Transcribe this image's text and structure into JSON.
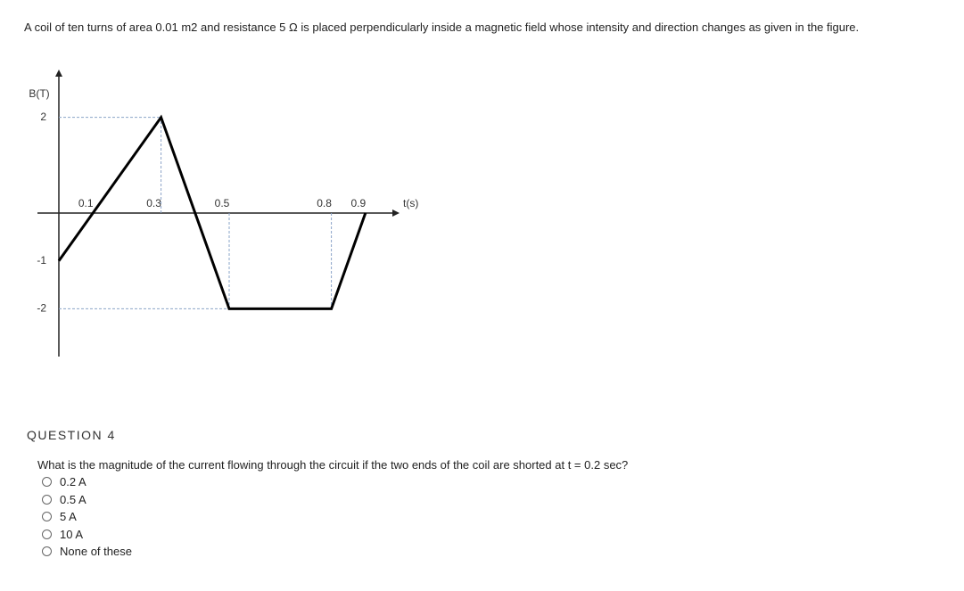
{
  "header": {
    "text": "A coil of ten turns of area 0.01 m2 and resistance 5 Ω is placed perpendicularly inside a magnetic field whose intensity and direction changes as given in the figure."
  },
  "chart_data": {
    "type": "line",
    "x": [
      0,
      0.1,
      0.3,
      0.5,
      0.8,
      0.9
    ],
    "values": [
      -1,
      0,
      2,
      -2,
      -2,
      0
    ],
    "color": "#000000",
    "xlabel": "t(s)",
    "ylabel": "B(T)",
    "xlim": [
      0,
      1
    ],
    "ylim": [
      -3,
      3
    ],
    "xticks": [
      0.1,
      0.3,
      0.5,
      0.8,
      0.9
    ],
    "yticks": [
      2,
      -1,
      -2
    ]
  },
  "question": {
    "label": "QUESTION 4",
    "text": "What is the magnitude of the current flowing through the circuit if the two ends of the coil are shorted at t = 0.2 sec?",
    "options": [
      "0.2 A",
      "0.5 A",
      "5 A",
      "10 A",
      "None of these"
    ]
  }
}
